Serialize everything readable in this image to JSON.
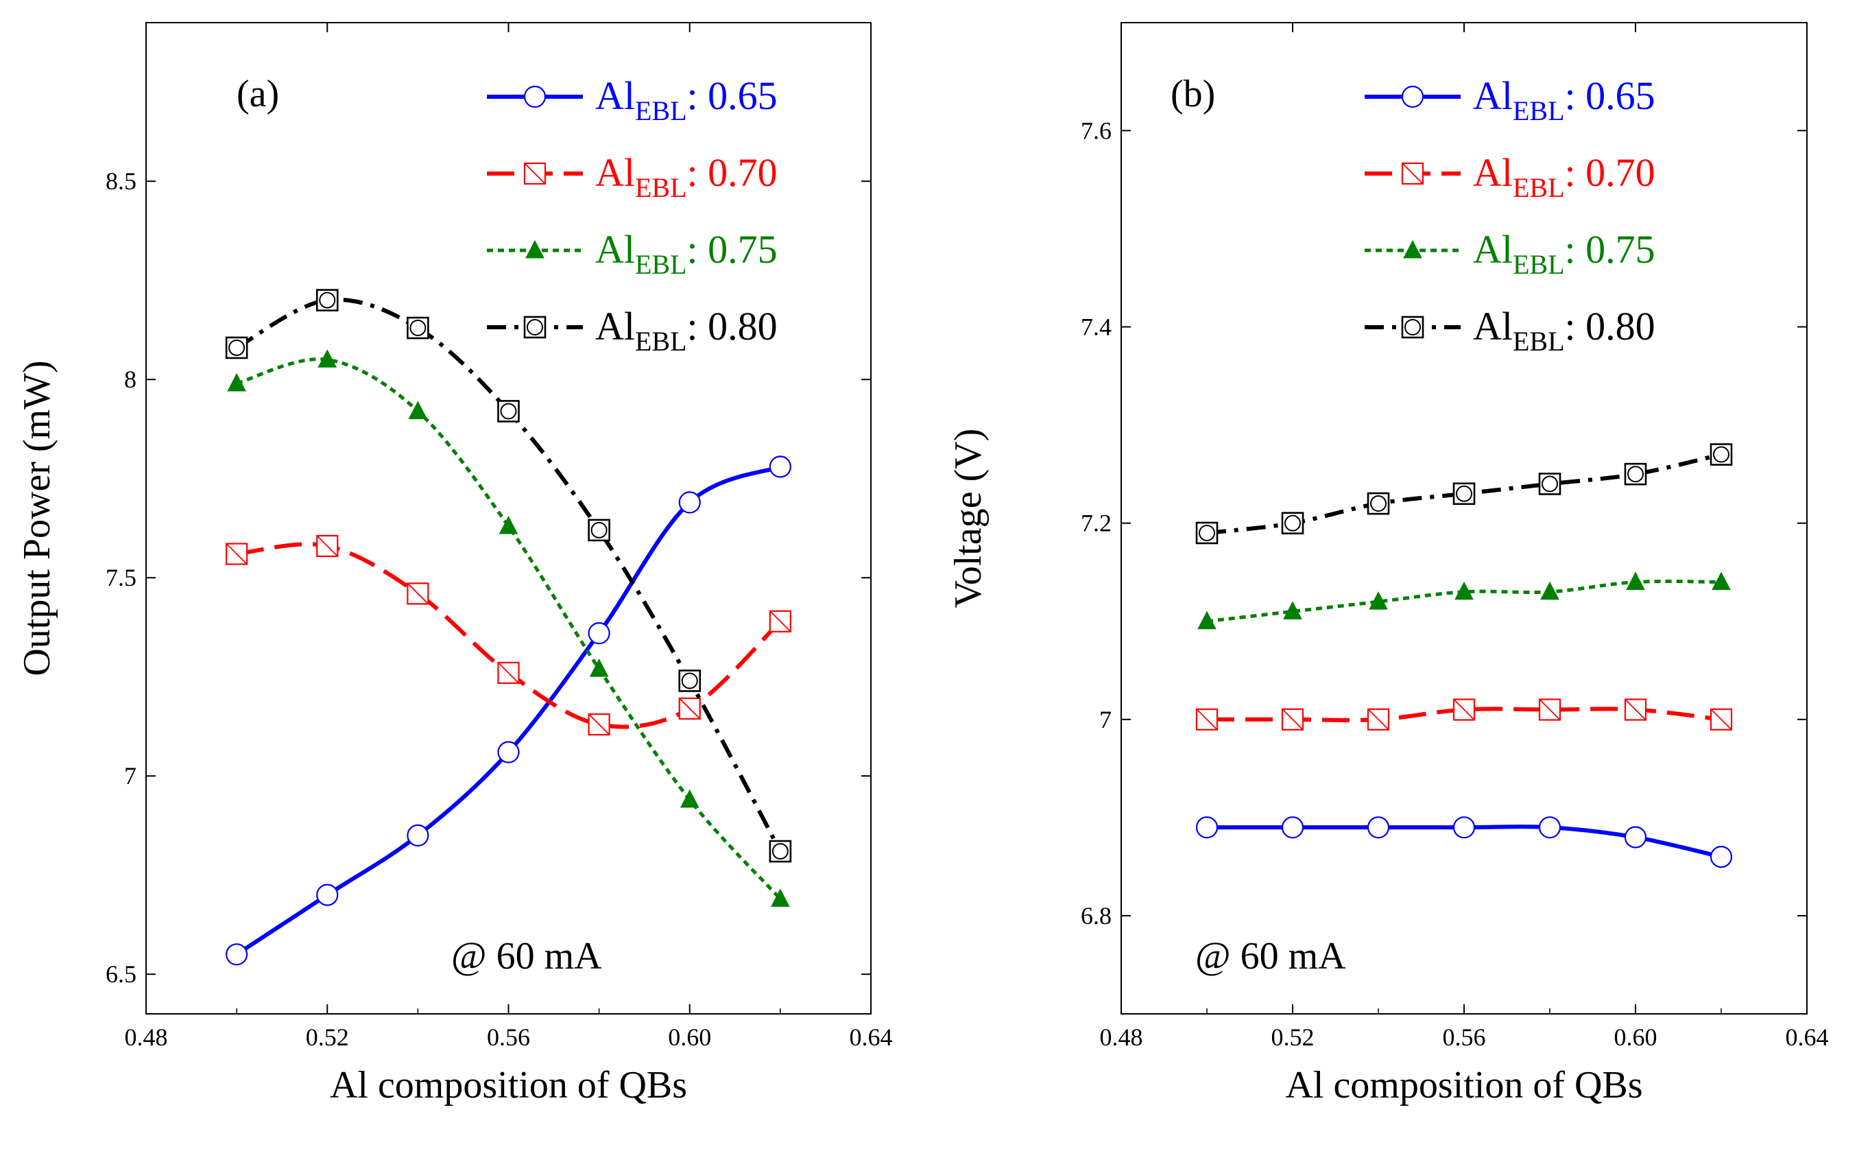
{
  "colors": {
    "blue": "#0000ff",
    "red": "#ff0000",
    "green": "#008000",
    "black": "#000000"
  },
  "annotation_shared": "@ 60 mA",
  "chart_data": [
    {
      "type": "line",
      "panel_label": "(a)",
      "xlabel": "Al composition of QBs",
      "ylabel": "Output Power (mW)",
      "xlim": [
        0.48,
        0.64
      ],
      "ylim": [
        6.4,
        8.9
      ],
      "xticks": [
        "0.48",
        "0.52",
        "0.56",
        "0.60",
        "0.64"
      ],
      "xtick_values": [
        0.48,
        0.52,
        0.56,
        0.6,
        0.64
      ],
      "yticks": [
        "6.5",
        "7",
        "7.5",
        "8",
        "8.5"
      ],
      "ytick_values": [
        6.5,
        7,
        7.5,
        8,
        8.5
      ],
      "annotation": "@ 60 mA",
      "legend_position": "top-right",
      "x": [
        0.5,
        0.52,
        0.54,
        0.56,
        0.58,
        0.6,
        0.62
      ],
      "series": [
        {
          "label_main": "Al",
          "label_sub": "EBL",
          "label_value": ": 0.65",
          "color": "#0000ff",
          "marker": "open-circle",
          "dash": "solid",
          "values": [
            6.55,
            6.7,
            6.85,
            7.06,
            7.36,
            7.69,
            7.78
          ]
        },
        {
          "label_main": "Al",
          "label_sub": "EBL",
          "label_value": ": 0.70",
          "color": "#ff0000",
          "marker": "open-square-slash",
          "dash": "dashed",
          "values": [
            7.56,
            7.58,
            7.46,
            7.26,
            7.13,
            7.17,
            7.39
          ]
        },
        {
          "label_main": "Al",
          "label_sub": "EBL",
          "label_value": ": 0.75",
          "color": "#008000",
          "marker": "filled-triangle",
          "dash": "dotted",
          "values": [
            7.99,
            8.05,
            7.92,
            7.63,
            7.27,
            6.94,
            6.69
          ]
        },
        {
          "label_main": "Al",
          "label_sub": "EBL",
          "label_value": ": 0.80",
          "color": "#000000",
          "marker": "open-square-circle",
          "dash": "dashdot",
          "values": [
            8.08,
            8.2,
            8.13,
            7.92,
            7.62,
            7.24,
            6.81
          ]
        }
      ]
    },
    {
      "type": "line",
      "panel_label": "(b)",
      "xlabel": "Al composition of QBs",
      "ylabel": "Voltage (V)",
      "xlim": [
        0.48,
        0.64
      ],
      "ylim": [
        6.7,
        7.71
      ],
      "xticks": [
        "0.48",
        "0.52",
        "0.56",
        "0.60",
        "0.64"
      ],
      "xtick_values": [
        0.48,
        0.52,
        0.56,
        0.6,
        0.64
      ],
      "yticks": [
        "6.8",
        "7",
        "7.2",
        "7.4",
        "7.6"
      ],
      "ytick_values": [
        6.8,
        7.0,
        7.2,
        7.4,
        7.6
      ],
      "annotation": "@ 60 mA",
      "legend_position": "top-right",
      "x": [
        0.5,
        0.52,
        0.54,
        0.56,
        0.58,
        0.6,
        0.62
      ],
      "series": [
        {
          "label_main": "Al",
          "label_sub": "EBL",
          "label_value": ": 0.65",
          "color": "#0000ff",
          "marker": "open-circle",
          "dash": "solid",
          "values": [
            6.89,
            6.89,
            6.89,
            6.89,
            6.89,
            6.88,
            6.86
          ]
        },
        {
          "label_main": "Al",
          "label_sub": "EBL",
          "label_value": ": 0.70",
          "color": "#ff0000",
          "marker": "open-square-slash",
          "dash": "dashed",
          "values": [
            7.0,
            7.0,
            7.0,
            7.01,
            7.01,
            7.01,
            7.0
          ]
        },
        {
          "label_main": "Al",
          "label_sub": "EBL",
          "label_value": ": 0.75",
          "color": "#008000",
          "marker": "filled-triangle",
          "dash": "dotted",
          "values": [
            7.1,
            7.11,
            7.12,
            7.13,
            7.13,
            7.14,
            7.14
          ]
        },
        {
          "label_main": "Al",
          "label_sub": "EBL",
          "label_value": ": 0.80",
          "color": "#000000",
          "marker": "open-square-circle",
          "dash": "dashdot",
          "values": [
            7.19,
            7.2,
            7.22,
            7.23,
            7.24,
            7.25,
            7.27
          ]
        }
      ]
    }
  ]
}
